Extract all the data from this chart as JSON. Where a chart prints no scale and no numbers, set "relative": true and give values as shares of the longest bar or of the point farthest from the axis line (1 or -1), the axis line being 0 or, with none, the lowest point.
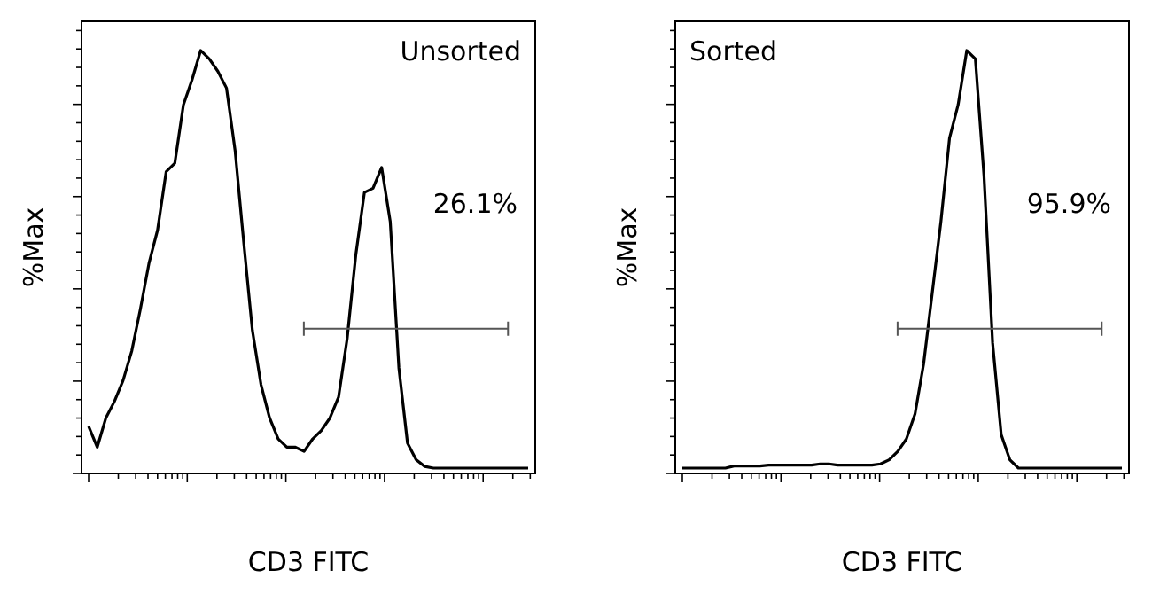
{
  "chart_data": [
    {
      "type": "line",
      "title": "Unsorted",
      "xlabel": "CD3 FITC",
      "ylabel": "%Max",
      "relative": true,
      "tick_labels": false,
      "annotations": [
        "26.1%"
      ],
      "categories": [
        null,
        null,
        null,
        null,
        null,
        null,
        null,
        null,
        null,
        null,
        null,
        null,
        null,
        null,
        null,
        null,
        null,
        null,
        null,
        null,
        null,
        null,
        null,
        null,
        null,
        null,
        null,
        null,
        null,
        null,
        null,
        null,
        null,
        null,
        null,
        null,
        null,
        null,
        null,
        null,
        null,
        null,
        null,
        null,
        null,
        null,
        null,
        null,
        null,
        null,
        null,
        null
      ],
      "series": [
        {
          "color": "#000000",
          "values": [
            0.1,
            0.05,
            0.12,
            0.16,
            0.21,
            0.28,
            0.38,
            0.49,
            0.57,
            0.71,
            0.73,
            0.87,
            0.93,
            1.0,
            0.98,
            0.95,
            0.91,
            0.76,
            0.54,
            0.33,
            0.2,
            0.12,
            0.07,
            0.05,
            0.05,
            0.04,
            0.07,
            0.09,
            0.12,
            0.17,
            0.31,
            0.51,
            0.66,
            0.67,
            0.72,
            0.59,
            0.24,
            0.06,
            0.02,
            0.004,
            0,
            0,
            0,
            0,
            0,
            0,
            0,
            0,
            0,
            0,
            0,
            0
          ]
        }
      ]
    },
    {
      "type": "line",
      "title": "Sorted",
      "xlabel": "CD3 FITC",
      "ylabel": "%Max",
      "relative": true,
      "tick_labels": false,
      "annotations": [
        "95.9%"
      ],
      "categories": [
        null,
        null,
        null,
        null,
        null,
        null,
        null,
        null,
        null,
        null,
        null,
        null,
        null,
        null,
        null,
        null,
        null,
        null,
        null,
        null,
        null,
        null,
        null,
        null,
        null,
        null,
        null,
        null,
        null,
        null,
        null,
        null,
        null,
        null,
        null,
        null,
        null,
        null,
        null,
        null,
        null,
        null,
        null,
        null,
        null,
        null,
        null,
        null,
        null,
        null,
        null,
        null
      ],
      "series": [
        {
          "color": "#000000",
          "values": [
            0,
            0,
            0,
            0,
            0,
            0,
            0.005,
            0.005,
            0.005,
            0.005,
            0.007,
            0.007,
            0.007,
            0.007,
            0.007,
            0.007,
            0.01,
            0.01,
            0.007,
            0.007,
            0.007,
            0.007,
            0.007,
            0.01,
            0.02,
            0.04,
            0.07,
            0.13,
            0.25,
            0.42,
            0.59,
            0.79,
            0.87,
            1.0,
            0.98,
            0.7,
            0.3,
            0.08,
            0.02,
            0,
            0,
            0,
            0,
            0,
            0,
            0,
            0,
            0,
            0,
            0,
            0,
            0
          ]
        }
      ]
    }
  ]
}
